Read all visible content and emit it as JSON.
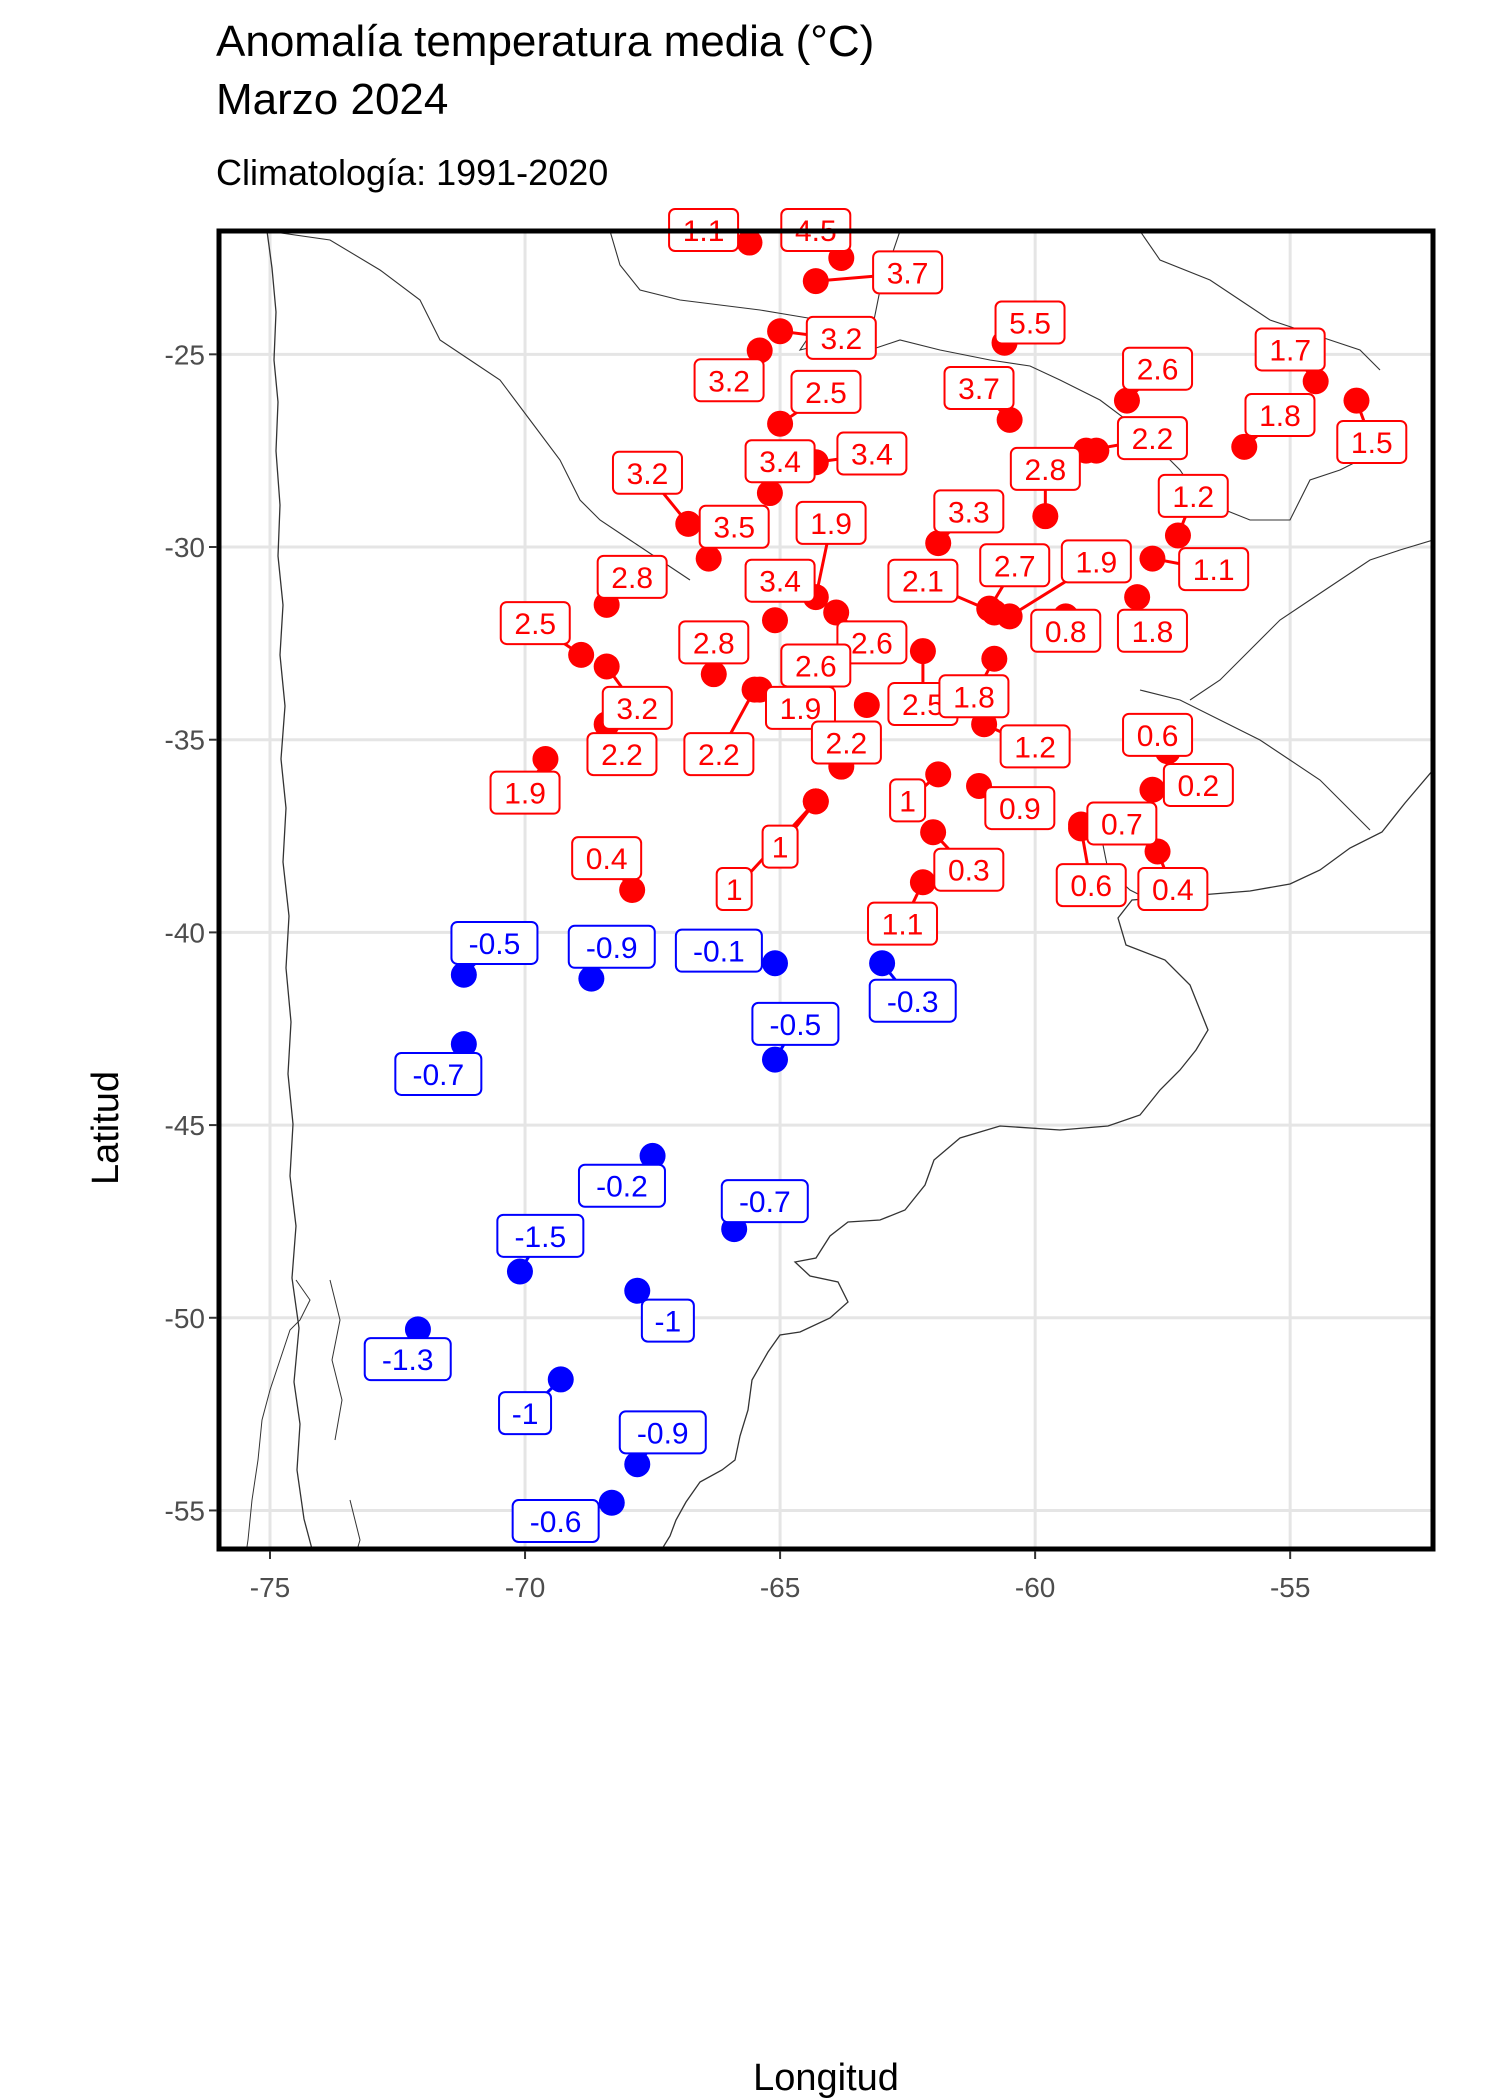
{
  "title_line1": "Anomalía temperatura media (°C)",
  "title_line2": "Marzo 2024",
  "subtitle": "Climatología: 1991-2020",
  "colors": {
    "positive": "#ff0000",
    "negative": "#0000ff",
    "grid": "#e5e5e5",
    "frame": "#000000",
    "coast": "#333333"
  },
  "chart_data": {
    "type": "scatter",
    "xlabel": "Longitud",
    "ylabel": "Latitud",
    "xlim": [
      -76,
      -52.2
    ],
    "ylim": [
      -56,
      -21.8
    ],
    "xticks": [
      -75,
      -70,
      -65,
      -60,
      -55
    ],
    "yticks": [
      -25,
      -30,
      -35,
      -40,
      -45,
      -50,
      -55
    ],
    "xtick_labels": [
      "-75",
      "-70",
      "-65",
      "-60",
      "-55"
    ],
    "ytick_labels": [
      "-25",
      "-30",
      "-35",
      "-40",
      "-45",
      "-50",
      "-55"
    ],
    "grid": true,
    "points": [
      {
        "lon": -65.6,
        "lat": -22.1,
        "value": 1.1,
        "label": "1.1",
        "lab_lon": -66.5,
        "lab_lat": -21.8
      },
      {
        "lon": -63.8,
        "lat": -22.5,
        "value": 4.5,
        "label": "4.5",
        "lab_lon": -64.3,
        "lab_lat": -21.8
      },
      {
        "lon": -64.3,
        "lat": -23.1,
        "value": 3.7,
        "label": "3.7",
        "lab_lon": -62.5,
        "lab_lat": -22.9
      },
      {
        "lon": -60.6,
        "lat": -24.7,
        "value": 5.5,
        "label": "5.5",
        "lab_lon": -60.1,
        "lab_lat": -24.2
      },
      {
        "lon": -65.0,
        "lat": -24.4,
        "value": 3.2,
        "label": "3.2",
        "lab_lon": -63.8,
        "lab_lat": -24.6
      },
      {
        "lon": -65.4,
        "lat": -24.9,
        "value": 3.2,
        "label": "3.2",
        "lab_lon": -66.0,
        "lab_lat": -25.7
      },
      {
        "lon": -65.0,
        "lat": -26.8,
        "value": 2.5,
        "label": "2.5",
        "lab_lon": -64.1,
        "lab_lat": -26.0
      },
      {
        "lon": -60.5,
        "lat": -26.7,
        "value": 3.7,
        "label": "3.7",
        "lab_lon": -61.1,
        "lab_lat": -25.9
      },
      {
        "lon": -58.2,
        "lat": -26.2,
        "value": 2.6,
        "label": "2.6",
        "lab_lon": -57.6,
        "lab_lat": -25.4
      },
      {
        "lon": -54.5,
        "lat": -25.7,
        "value": 1.7,
        "label": "1.7",
        "lab_lon": -55.0,
        "lab_lat": -24.9
      },
      {
        "lon": -53.7,
        "lat": -26.2,
        "value": 1.5,
        "label": "1.5",
        "lab_lon": -53.4,
        "lab_lat": -27.3
      },
      {
        "lon": -55.9,
        "lat": -27.4,
        "value": 1.8,
        "label": "1.8",
        "lab_lon": -55.2,
        "lab_lat": -26.6
      },
      {
        "lon": -59.0,
        "lat": -27.5,
        "value": 2.2,
        "label": "2.2",
        "lab_lon": -57.7,
        "lab_lat": -27.2
      },
      {
        "lon": -58.8,
        "lat": -27.5,
        "value": 2.2,
        "label": "",
        "lab_lon": -58.8,
        "lab_lat": -27.5
      },
      {
        "lon": -64.3,
        "lat": -27.8,
        "value": 3.4,
        "label": "3.4",
        "lab_lon": -63.2,
        "lab_lat": -27.6
      },
      {
        "lon": -65.2,
        "lat": -28.6,
        "value": 3.4,
        "label": "3.4",
        "lab_lon": -65.0,
        "lab_lat": -27.8
      },
      {
        "lon": -66.8,
        "lat": -29.4,
        "value": 3.2,
        "label": "3.2",
        "lab_lon": -67.6,
        "lab_lat": -28.1
      },
      {
        "lon": -66.3,
        "lat": -29.5,
        "value": 3.5,
        "label": "3.5",
        "lab_lon": -65.9,
        "lab_lat": -29.5
      },
      {
        "lon": -66.4,
        "lat": -30.3,
        "value": 3.5,
        "label": "",
        "lab_lon": -66.4,
        "lab_lat": -30.3
      },
      {
        "lon": -59.8,
        "lat": -29.2,
        "value": 2.8,
        "label": "2.8",
        "lab_lon": -59.8,
        "lab_lat": -28.0
      },
      {
        "lon": -61.9,
        "lat": -29.9,
        "value": 3.3,
        "label": "3.3",
        "lab_lon": -61.3,
        "lab_lat": -29.1
      },
      {
        "lon": -57.2,
        "lat": -29.7,
        "value": 1.2,
        "label": "1.2",
        "lab_lon": -56.9,
        "lab_lat": -28.7
      },
      {
        "lon": -57.7,
        "lat": -30.3,
        "value": 1.1,
        "label": "1.1",
        "lab_lon": -56.5,
        "lab_lat": -30.6
      },
      {
        "lon": -64.3,
        "lat": -31.3,
        "value": 1.9,
        "label": "1.9",
        "lab_lon": -64.0,
        "lab_lat": -29.4
      },
      {
        "lon": -63.9,
        "lat": -31.7,
        "value": 2.6,
        "label": "2.6",
        "lab_lon": -63.2,
        "lab_lat": -32.5
      },
      {
        "lon": -60.8,
        "lat": -31.7,
        "value": 2.1,
        "label": "2.1",
        "lab_lon": -62.2,
        "lab_lat": -30.9
      },
      {
        "lon": -60.5,
        "lat": -31.8,
        "value": 1.9,
        "label": "1.9",
        "lab_lon": -58.8,
        "lab_lat": -30.4
      },
      {
        "lon": -60.9,
        "lat": -31.6,
        "value": 2.7,
        "label": "2.7",
        "lab_lon": -60.4,
        "lab_lat": -30.5
      },
      {
        "lon": -59.4,
        "lat": -31.8,
        "value": 0.8,
        "label": "0.8",
        "lab_lon": -59.4,
        "lab_lat": -32.2
      },
      {
        "lon": -58.0,
        "lat": -31.3,
        "value": 1.8,
        "label": "1.8",
        "lab_lon": -57.7,
        "lab_lat": -32.2
      },
      {
        "lon": -65.1,
        "lat": -31.9,
        "value": 3.4,
        "label": "3.4",
        "lab_lon": -65.0,
        "lab_lat": -30.9
      },
      {
        "lon": -68.4,
        "lat": -31.5,
        "value": 2.8,
        "label": "2.8",
        "lab_lon": -67.9,
        "lab_lat": -30.8
      },
      {
        "lon": -68.9,
        "lat": -32.8,
        "value": 2.5,
        "label": "2.5",
        "lab_lon": -69.8,
        "lab_lat": -32.0
      },
      {
        "lon": -68.4,
        "lat": -33.1,
        "value": 3.2,
        "label": "3.2",
        "lab_lon": -67.8,
        "lab_lat": -34.2
      },
      {
        "lon": -68.4,
        "lat": -34.6,
        "value": 2.2,
        "label": "2.2",
        "lab_lon": -68.1,
        "lab_lat": -35.4
      },
      {
        "lon": -66.3,
        "lat": -33.3,
        "value": 2.8,
        "label": "2.8",
        "lab_lon": -66.3,
        "lab_lat": -32.5
      },
      {
        "lon": -64.3,
        "lat": -33.1,
        "value": 2.6,
        "label": "2.6",
        "lab_lon": -64.3,
        "lab_lat": -33.1
      },
      {
        "lon": -65.4,
        "lat": -33.7,
        "value": 1.9,
        "label": "1.9",
        "lab_lon": -64.6,
        "lab_lat": -34.2
      },
      {
        "lon": -62.2,
        "lat": -32.7,
        "value": 2.5,
        "label": "2.5",
        "lab_lon": -62.2,
        "lab_lat": -34.1
      },
      {
        "lon": -60.8,
        "lat": -32.9,
        "value": 1.8,
        "label": "1.8",
        "lab_lon": -61.2,
        "lab_lat": -33.9
      },
      {
        "lon": -63.3,
        "lat": -34.1,
        "value": 2.2,
        "label": "",
        "lab_lon": -63.3,
        "lab_lat": -34.1
      },
      {
        "lon": -61.0,
        "lat": -34.6,
        "value": 1.2,
        "label": "1.2",
        "lab_lon": -60.0,
        "lab_lat": -35.2
      },
      {
        "lon": -63.8,
        "lat": -35.7,
        "value": 2.2,
        "label": "2.2",
        "lab_lon": -63.7,
        "lab_lat": -35.1
      },
      {
        "lon": -65.5,
        "lat": -33.7,
        "value": 2.2,
        "label": "2.2",
        "lab_lon": -66.2,
        "lab_lat": -35.4
      },
      {
        "lon": -69.6,
        "lat": -35.5,
        "value": 1.9,
        "label": "1.9",
        "lab_lon": -70.0,
        "lab_lat": -36.4
      },
      {
        "lon": -61.9,
        "lat": -35.9,
        "value": 1.0,
        "label": "1",
        "lab_lon": -62.5,
        "lab_lat": -36.6
      },
      {
        "lon": -61.1,
        "lat": -36.2,
        "value": 0.9,
        "label": "0.9",
        "lab_lon": -60.3,
        "lab_lat": -36.8
      },
      {
        "lon": -64.3,
        "lat": -36.6,
        "value": 1.0,
        "label": "1",
        "lab_lon": -65.0,
        "lab_lat": -37.8
      },
      {
        "lon": -62.0,
        "lat": -37.4,
        "value": 0.3,
        "label": "0.3",
        "lab_lon": -61.3,
        "lab_lat": -38.4
      },
      {
        "lon": -67.9,
        "lat": -38.9,
        "value": 0.4,
        "label": "0.4",
        "lab_lon": -68.4,
        "lab_lat": -38.1
      },
      {
        "lon": -59.1,
        "lat": -37.2,
        "value": 0.7,
        "label": "0.7",
        "lab_lon": -58.3,
        "lab_lat": -37.2
      },
      {
        "lon": -57.7,
        "lat": -36.3,
        "value": 0.2,
        "label": "0.2",
        "lab_lon": -56.8,
        "lab_lat": -36.2
      },
      {
        "lon": -57.8,
        "lat": -35.0,
        "value": 0.6,
        "label": "0.6",
        "lab_lon": -57.6,
        "lab_lat": -34.9
      },
      {
        "lon": -57.4,
        "lat": -35.3,
        "value": 0.6,
        "label": "",
        "lab_lon": -57.4,
        "lab_lat": -35.3
      },
      {
        "lon": -57.6,
        "lat": -37.9,
        "value": 0.4,
        "label": "0.4",
        "lab_lon": -57.3,
        "lab_lat": -38.9
      },
      {
        "lon": -59.1,
        "lat": -37.3,
        "value": 0.6,
        "label": "0.6",
        "lab_lon": -58.9,
        "lab_lat": -38.8
      },
      {
        "lon": -62.2,
        "lat": -38.7,
        "value": 1.1,
        "label": "1.1",
        "lab_lon": -62.6,
        "lab_lat": -39.8
      },
      {
        "lon": -64.3,
        "lat": -36.6,
        "value": 1.0,
        "label": "1",
        "lab_lon": -65.9,
        "lab_lat": -38.9
      },
      {
        "lon": -71.2,
        "lat": -41.1,
        "value": -0.5,
        "label": "-0.5",
        "lab_lon": -70.6,
        "lab_lat": -40.3
      },
      {
        "lon": -68.7,
        "lat": -41.2,
        "value": -0.9,
        "label": "-0.9",
        "lab_lon": -68.3,
        "lab_lat": -40.4
      },
      {
        "lon": -65.1,
        "lat": -40.8,
        "value": -0.1,
        "label": "-0.1",
        "lab_lon": -66.2,
        "lab_lat": -40.5
      },
      {
        "lon": -63.0,
        "lat": -40.8,
        "value": -0.3,
        "label": "-0.3",
        "lab_lon": -62.4,
        "lab_lat": -41.8
      },
      {
        "lon": -71.2,
        "lat": -42.9,
        "value": -0.7,
        "label": "-0.7",
        "lab_lon": -71.7,
        "lab_lat": -43.7
      },
      {
        "lon": -65.1,
        "lat": -43.3,
        "value": -0.5,
        "label": "-0.5",
        "lab_lon": -64.7,
        "lab_lat": -42.4
      },
      {
        "lon": -67.5,
        "lat": -45.8,
        "value": -0.2,
        "label": "-0.2",
        "lab_lon": -68.1,
        "lab_lat": -46.6
      },
      {
        "lon": -65.9,
        "lat": -47.7,
        "value": -0.7,
        "label": "-0.7",
        "lab_lon": -65.3,
        "lab_lat": -47.0
      },
      {
        "lon": -70.1,
        "lat": -48.8,
        "value": -1.5,
        "label": "-1.5",
        "lab_lon": -69.7,
        "lab_lat": -47.9
      },
      {
        "lon": -67.8,
        "lat": -49.3,
        "value": -1.0,
        "label": "-1",
        "lab_lon": -67.2,
        "lab_lat": -50.1
      },
      {
        "lon": -72.1,
        "lat": -50.3,
        "value": -1.3,
        "label": "-1.3",
        "lab_lon": -72.3,
        "lab_lat": -51.1
      },
      {
        "lon": -69.3,
        "lat": -51.6,
        "value": -1.0,
        "label": "-1",
        "lab_lon": -70.0,
        "lab_lat": -52.5
      },
      {
        "lon": -67.8,
        "lat": -53.8,
        "value": -0.9,
        "label": "-0.9",
        "lab_lon": -67.3,
        "lab_lat": -53.0
      },
      {
        "lon": -68.3,
        "lat": -54.8,
        "value": -0.6,
        "label": "-0.6",
        "lab_lon": -69.4,
        "lab_lat": -55.3
      }
    ]
  }
}
